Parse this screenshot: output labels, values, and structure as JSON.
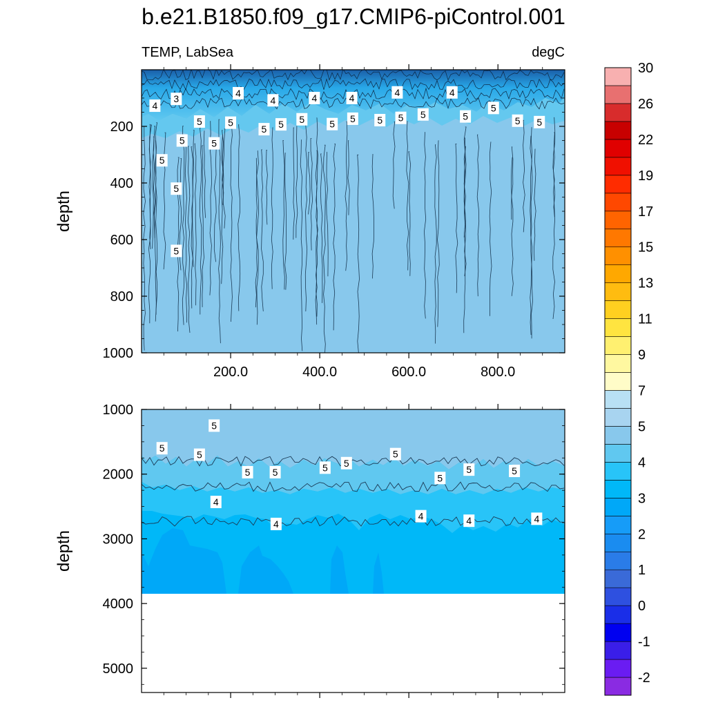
{
  "title": "b.e21.B1850.f09_g17.CMIP6-piControl.001",
  "chart_data": {
    "type": "heatmap",
    "variable": "TEMP, LabSea",
    "units": "degC",
    "colorbar": {
      "colors": [
        "#8a2be2",
        "#6a1cf2",
        "#3a1ee8",
        "#0000f0",
        "#1a2ee8",
        "#2e50e0",
        "#3a6ad8",
        "#2a7ce8",
        "#1a8cf0",
        "#169cf8",
        "#00a8f8",
        "#00b8f8",
        "#28c4f8",
        "#60c8f0",
        "#88c8ec",
        "#a8d4f0",
        "#b8e0f4",
        "#fffcc8",
        "#fff8a0",
        "#fff070",
        "#ffe440",
        "#ffd020",
        "#ffbc10",
        "#ffa800",
        "#ff9000",
        "#ff7800",
        "#ff6400",
        "#ff4800",
        "#ff2c00",
        "#f01000",
        "#e00000",
        "#c80000",
        "#d82c2c",
        "#e87070",
        "#f8b0b0"
      ],
      "labels": [
        "-2",
        "-1",
        "0",
        "1",
        "2",
        "3",
        "4",
        "5",
        "7",
        "9",
        "11",
        "13",
        "15",
        "17",
        "19",
        "22",
        "26",
        "30"
      ]
    },
    "panels": [
      {
        "name": "upper",
        "ylabel": "depth",
        "y_ticks": [
          "200",
          "400",
          "600",
          "800",
          "1000"
        ],
        "y_tick_values": [
          200,
          400,
          600,
          800,
          1000
        ],
        "ylim": [
          0,
          1000
        ],
        "x_ticks": [
          "200.0",
          "400.0",
          "600.0",
          "800.0"
        ],
        "x_tick_values": [
          200,
          400,
          600,
          800
        ],
        "xlim": [
          0,
          950
        ],
        "contour_labels": [
          {
            "text": "4",
            "x": 30,
            "y": 127
          },
          {
            "text": "3",
            "x": 78,
            "y": 103
          },
          {
            "text": "4",
            "x": 217,
            "y": 83
          },
          {
            "text": "4",
            "x": 295,
            "y": 108
          },
          {
            "text": "4",
            "x": 388,
            "y": 100
          },
          {
            "text": "4",
            "x": 472,
            "y": 100
          },
          {
            "text": "4",
            "x": 574,
            "y": 80
          },
          {
            "text": "4",
            "x": 697,
            "y": 80
          },
          {
            "text": "5",
            "x": 130,
            "y": 183
          },
          {
            "text": "5",
            "x": 200,
            "y": 187
          },
          {
            "text": "5",
            "x": 275,
            "y": 210
          },
          {
            "text": "5",
            "x": 313,
            "y": 193
          },
          {
            "text": "5",
            "x": 360,
            "y": 175
          },
          {
            "text": "5",
            "x": 428,
            "y": 192
          },
          {
            "text": "5",
            "x": 474,
            "y": 173
          },
          {
            "text": "5",
            "x": 535,
            "y": 178
          },
          {
            "text": "5",
            "x": 582,
            "y": 170
          },
          {
            "text": "5",
            "x": 632,
            "y": 158
          },
          {
            "text": "5",
            "x": 727,
            "y": 165
          },
          {
            "text": "5",
            "x": 790,
            "y": 135
          },
          {
            "text": "5",
            "x": 844,
            "y": 180
          },
          {
            "text": "5",
            "x": 893,
            "y": 185
          },
          {
            "text": "5",
            "x": 91,
            "y": 250
          },
          {
            "text": "5",
            "x": 163,
            "y": 260
          },
          {
            "text": "5",
            "x": 46,
            "y": 320
          },
          {
            "text": "5",
            "x": 78,
            "y": 420
          },
          {
            "text": "5",
            "x": 78,
            "y": 640
          }
        ]
      },
      {
        "name": "lower",
        "ylabel": "depth",
        "y_ticks": [
          "1000",
          "2000",
          "3000",
          "4000",
          "5000"
        ],
        "y_tick_values": [
          1000,
          2000,
          3000,
          4000,
          5000
        ],
        "ylim": [
          1000,
          5375
        ],
        "x_ticks": [],
        "xlim": [
          0,
          950
        ],
        "data_bottom_depth": 3850,
        "contour_labels": [
          {
            "text": "5",
            "x": 163,
            "y": 1250
          },
          {
            "text": "5",
            "x": 46,
            "y": 1600
          },
          {
            "text": "5",
            "x": 130,
            "y": 1700
          },
          {
            "text": "5",
            "x": 238,
            "y": 1970
          },
          {
            "text": "5",
            "x": 300,
            "y": 1970
          },
          {
            "text": "5",
            "x": 412,
            "y": 1900
          },
          {
            "text": "5",
            "x": 460,
            "y": 1830
          },
          {
            "text": "5",
            "x": 570,
            "y": 1690
          },
          {
            "text": "5",
            "x": 670,
            "y": 2060
          },
          {
            "text": "5",
            "x": 735,
            "y": 1930
          },
          {
            "text": "5",
            "x": 837,
            "y": 1950
          },
          {
            "text": "4",
            "x": 167,
            "y": 2430
          },
          {
            "text": "4",
            "x": 302,
            "y": 2770
          },
          {
            "text": "4",
            "x": 627,
            "y": 2650
          },
          {
            "text": "4",
            "x": 735,
            "y": 2720
          },
          {
            "text": "4",
            "x": 887,
            "y": 2690
          }
        ]
      }
    ]
  }
}
